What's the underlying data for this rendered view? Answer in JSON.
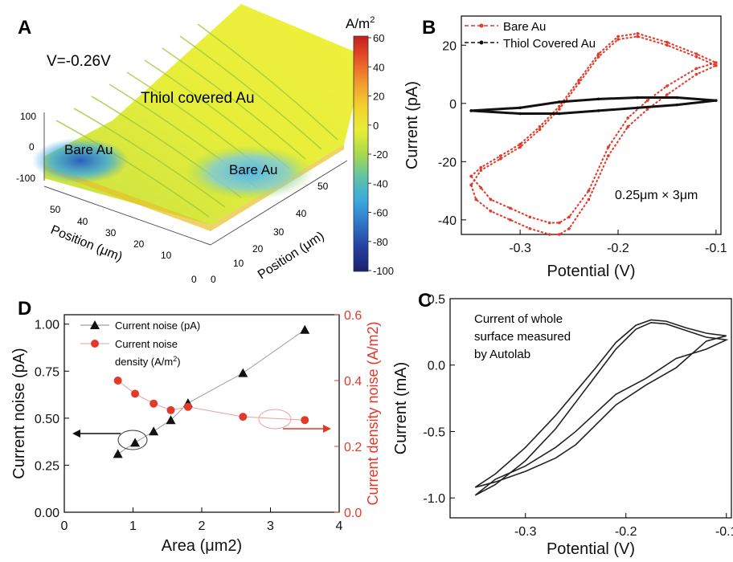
{
  "panels": {
    "A": {
      "letter": "A",
      "voltage": "V=-0.26V",
      "label_thiol": "Thiol covered Au",
      "label_bare_left": "Bare Au",
      "label_bare_right": "Bare Au",
      "z_ticks": [
        "100",
        "0",
        "-100"
      ],
      "left_pos_ticks": [
        "50",
        "40",
        "30",
        "20",
        "10",
        "0"
      ],
      "right_pos_ticks": [
        "0",
        "10",
        "20",
        "30",
        "40",
        "50"
      ],
      "left_axis_label": "Position (μm)",
      "right_axis_label": "Position (μm)",
      "colorbar": {
        "unit": "A/m",
        "unit_sup": "2",
        "ticks": [
          "60",
          "40",
          "20",
          "0",
          "-20",
          "-40",
          "-60",
          "-80",
          "-100"
        ],
        "colors": [
          "#c41d1d",
          "#e8542a",
          "#f19a2f",
          "#f3d12f",
          "#e7ef37",
          "#a9d94a",
          "#5fc3a7",
          "#3aa9df",
          "#2f74c6",
          "#263f9b",
          "#1a2270"
        ]
      }
    },
    "B": {
      "letter": "B",
      "legend": [
        "Bare Au",
        "Thiol Covered Au"
      ],
      "annotation": "0.25μm × 3μm",
      "colors": {
        "bare": "#e23a2a",
        "thiol": "#111111"
      }
    },
    "C": {
      "letter": "C",
      "annotation_lines": [
        "Current of whole",
        "surface measured",
        "by Autolab"
      ]
    },
    "D": {
      "letter": "D",
      "legend_noise": "Current noise (pA)",
      "legend_density_l1": "Current noise",
      "legend_density_l2": "density (A/m",
      "legend_density_sup": "2",
      "legend_density_end": ")",
      "colors": {
        "noise": "#111111",
        "density": "#e23a2a"
      }
    }
  },
  "chart_data": [
    {
      "panel": "A",
      "type": "heatmap",
      "title": "V=-0.26V",
      "z_axis": {
        "ticks": [
          100,
          0,
          -100
        ]
      },
      "x_axis": {
        "label": "Position (μm)",
        "range": [
          0,
          50
        ]
      },
      "y_axis": {
        "label": "Position (μm)",
        "range": [
          0,
          50
        ]
      },
      "colorbar": {
        "label": "A/m2",
        "range": [
          -100,
          60
        ]
      },
      "annotations": [
        "Thiol covered Au",
        "Bare Au",
        "Bare Au"
      ]
    },
    {
      "panel": "B",
      "type": "line",
      "xlabel": "Potential (V)",
      "ylabel": "Current (pA)",
      "xlim": [
        -0.36,
        -0.095
      ],
      "ylim": [
        -45,
        30
      ],
      "xticks": [
        -0.3,
        -0.2,
        -0.1
      ],
      "xtick_labels": [
        "-0.3",
        "-0.2",
        "-0.1"
      ],
      "yticks": [
        -40,
        -20,
        0,
        20
      ],
      "ytick_labels": [
        "-40",
        "-20",
        "0",
        "20"
      ],
      "series": [
        {
          "name": "Bare Au",
          "color": "#e23a2a",
          "x": [
            -0.35,
            -0.345,
            -0.33,
            -0.31,
            -0.29,
            -0.27,
            -0.26,
            -0.25,
            -0.23,
            -0.21,
            -0.19,
            -0.17,
            -0.15,
            -0.12,
            -0.1,
            -0.12,
            -0.15,
            -0.18,
            -0.2,
            -0.22,
            -0.24,
            -0.26,
            -0.28,
            -0.3,
            -0.32,
            -0.34,
            -0.35
          ],
          "y": [
            -28,
            -33,
            -37,
            -40,
            -43,
            -45,
            -45,
            -43,
            -33,
            -18,
            -8,
            -2,
            3,
            10,
            13,
            16,
            20,
            23,
            22,
            16,
            7,
            -2,
            -9,
            -15,
            -19,
            -23,
            -28
          ]
        },
        {
          "name": "Bare Au",
          "color": "#e23a2a",
          "x": [
            -0.35,
            -0.34,
            -0.33,
            -0.31,
            -0.29,
            -0.27,
            -0.26,
            -0.25,
            -0.23,
            -0.21,
            -0.19,
            -0.17,
            -0.15,
            -0.12,
            -0.1,
            -0.12,
            -0.15,
            -0.18,
            -0.2,
            -0.22,
            -0.24,
            -0.26,
            -0.28,
            -0.3,
            -0.32,
            -0.34,
            -0.35
          ],
          "y": [
            -25,
            -29,
            -33,
            -36,
            -39,
            -41,
            -41,
            -39,
            -30,
            -15,
            -5,
            1,
            6,
            12,
            14,
            17,
            21,
            24,
            23,
            17,
            8,
            -1,
            -8,
            -14,
            -18,
            -22,
            -25
          ]
        },
        {
          "name": "Thiol Covered Au",
          "color": "#111111",
          "x": [
            -0.35,
            -0.3,
            -0.26,
            -0.22,
            -0.18,
            -0.14,
            -0.1,
            -0.14,
            -0.18,
            -0.22,
            -0.26,
            -0.3,
            -0.35
          ],
          "y": [
            -2.5,
            -3.5,
            -3.5,
            -2.5,
            -1.5,
            -0.5,
            1,
            2,
            2,
            1.5,
            0.5,
            -1.5,
            -2.5
          ]
        }
      ],
      "annotation": "0.25μm × 3μm"
    },
    {
      "panel": "C",
      "type": "line",
      "xlabel": "Potential (V)",
      "ylabel": "Current (mA)",
      "xlim": [
        -0.375,
        -0.095
      ],
      "ylim": [
        -1.15,
        0.5
      ],
      "xticks": [
        -0.3,
        -0.2,
        -0.1
      ],
      "xtick_labels": [
        "-0.3",
        "-0.2",
        "-0.1"
      ],
      "yticks": [
        -1.0,
        -0.5,
        0.0,
        0.5
      ],
      "ytick_labels": [
        "-1.0",
        "-0.5",
        "0.0",
        "0.5"
      ],
      "series": [
        {
          "name": "",
          "color": "#222222",
          "x": [
            -0.35,
            -0.33,
            -0.3,
            -0.27,
            -0.25,
            -0.23,
            -0.21,
            -0.19,
            -0.175,
            -0.16,
            -0.14,
            -0.12,
            -0.1,
            -0.12,
            -0.15,
            -0.18,
            -0.21,
            -0.23,
            -0.25,
            -0.27,
            -0.3,
            -0.33,
            -0.35
          ],
          "y": [
            -0.92,
            -0.82,
            -0.62,
            -0.38,
            -0.2,
            -0.02,
            0.17,
            0.3,
            0.34,
            0.33,
            0.28,
            0.24,
            0.22,
            0.18,
            -0.02,
            -0.15,
            -0.3,
            -0.45,
            -0.6,
            -0.7,
            -0.8,
            -0.88,
            -0.92
          ]
        },
        {
          "name": "",
          "color": "#222222",
          "x": [
            -0.35,
            -0.33,
            -0.3,
            -0.27,
            -0.25,
            -0.23,
            -0.21,
            -0.19,
            -0.175,
            -0.16,
            -0.14,
            -0.12,
            -0.1,
            -0.12,
            -0.15,
            -0.18,
            -0.21,
            -0.23,
            -0.25,
            -0.27,
            -0.3,
            -0.33,
            -0.35
          ],
          "y": [
            -0.98,
            -0.9,
            -0.72,
            -0.48,
            -0.28,
            -0.08,
            0.12,
            0.27,
            0.32,
            0.31,
            0.26,
            0.21,
            0.19,
            0.12,
            0.05,
            -0.1,
            -0.22,
            -0.36,
            -0.5,
            -0.62,
            -0.76,
            -0.86,
            -0.98
          ]
        }
      ],
      "annotation": "Current of whole surface measured by Autolab"
    },
    {
      "panel": "D",
      "type": "scatter",
      "xlabel": "Area (μm2)",
      "ylabel": "Current noise (pA)",
      "ylabel_right": "Current density noise (A/m2)",
      "xlim": [
        0,
        4
      ],
      "ylim": [
        0,
        1.05
      ],
      "ylim_right": [
        0,
        0.6
      ],
      "xticks": [
        0,
        1,
        2,
        3,
        4
      ],
      "xtick_labels": [
        "0",
        "1",
        "2",
        "3",
        "4"
      ],
      "yticks": [
        0.0,
        0.25,
        0.5,
        0.75,
        1.0
      ],
      "ytick_labels": [
        "0.00",
        "0.25",
        "0.50",
        "0.75",
        "1.00"
      ],
      "yticks_right": [
        0.0,
        0.2,
        0.4,
        0.6
      ],
      "ytick_labels_right": [
        "0.0",
        "0.2",
        "0.4",
        "0.6"
      ],
      "series": [
        {
          "name": "Current noise (pA)",
          "axis": "left",
          "marker": "triangle",
          "color": "#111111",
          "x": [
            0.78,
            1.03,
            1.3,
            1.55,
            1.8,
            2.6,
            3.5
          ],
          "y": [
            0.31,
            0.37,
            0.43,
            0.49,
            0.58,
            0.74,
            0.97
          ]
        },
        {
          "name": "Current noise density (A/m2)",
          "axis": "right",
          "marker": "circle",
          "color": "#e23a2a",
          "x": [
            0.78,
            1.03,
            1.3,
            1.55,
            1.8,
            2.6,
            3.5
          ],
          "y": [
            0.4,
            0.36,
            0.33,
            0.31,
            0.32,
            0.29,
            0.28
          ]
        }
      ]
    }
  ]
}
